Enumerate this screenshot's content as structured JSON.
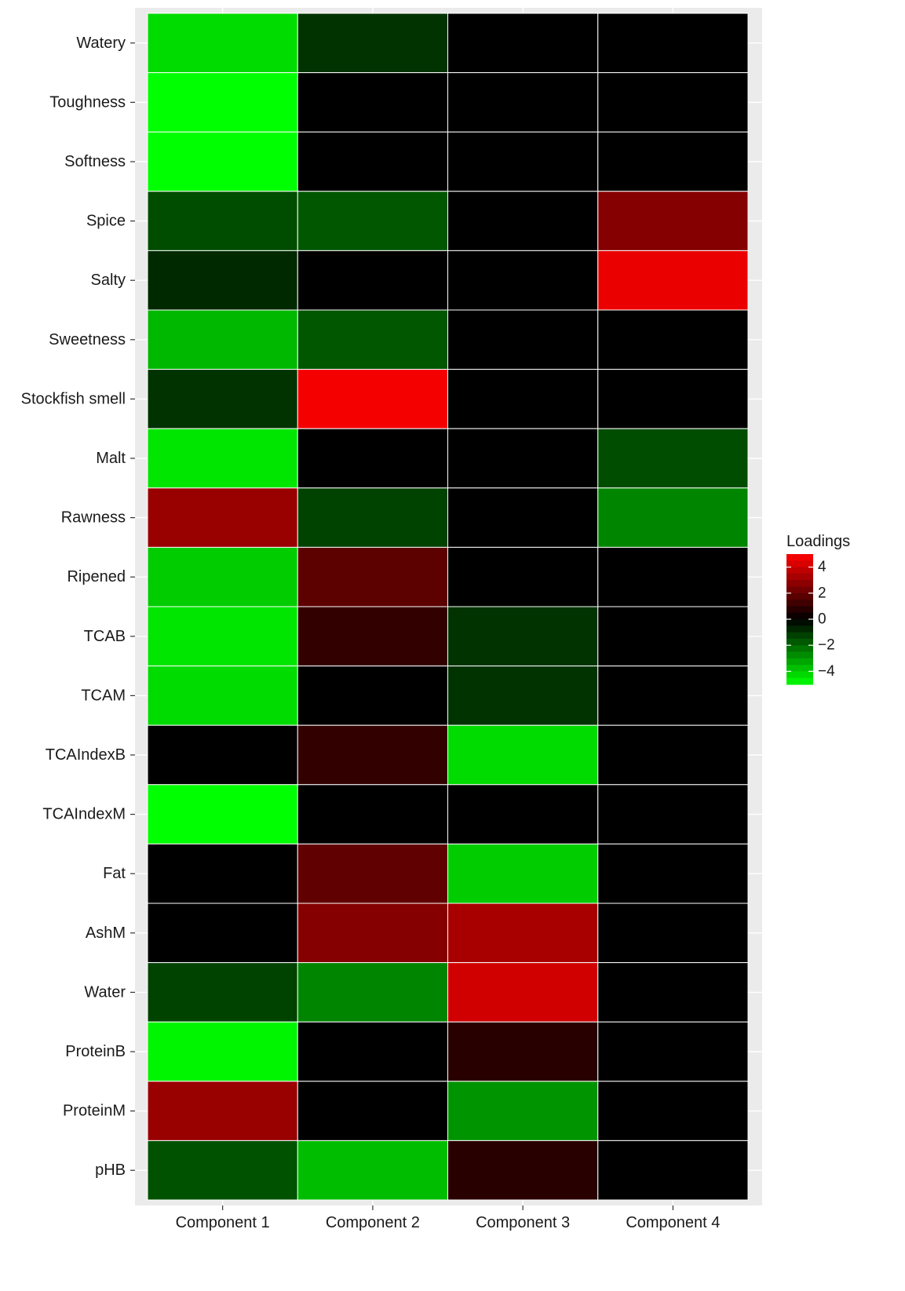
{
  "chart_data": {
    "type": "heatmap",
    "title": "",
    "xlabel": "",
    "ylabel": "",
    "x_categories": [
      "Component 1",
      "Component 2",
      "Component 3",
      "Component 4"
    ],
    "y_categories": [
      "Watery",
      "Toughness",
      "Softness",
      "Spice",
      "Salty",
      "Sweetness",
      "Stockfish smell",
      "Malt",
      "Rawness",
      "Ripened",
      "TCAB",
      "TCAM",
      "TCAIndexB",
      "TCAIndexM",
      "Fat",
      "AshM",
      "Water",
      "ProteinB",
      "ProteinM",
      "pHB"
    ],
    "values": [
      [
        -4.3,
        -1.0,
        0.0,
        0.0
      ],
      [
        -5.0,
        0.0,
        0.0,
        0.0
      ],
      [
        -5.0,
        0.0,
        0.0,
        0.0
      ],
      [
        -1.5,
        -1.7,
        0.0,
        2.6
      ],
      [
        -0.8,
        0.0,
        0.0,
        4.6
      ],
      [
        -3.6,
        -1.7,
        0.0,
        0.0
      ],
      [
        -1.0,
        4.8,
        0.0,
        0.0
      ],
      [
        -4.5,
        0.0,
        0.0,
        -1.5
      ],
      [
        3.0,
        -1.3,
        0.0,
        -2.6
      ],
      [
        -4.0,
        1.8,
        0.0,
        0.0
      ],
      [
        -4.5,
        1.0,
        -1.0,
        0.0
      ],
      [
        -4.3,
        0.0,
        -1.0,
        0.0
      ],
      [
        0.0,
        1.0,
        -4.3,
        0.0
      ],
      [
        -5.0,
        0.0,
        0.0,
        0.0
      ],
      [
        0.0,
        1.9,
        -4.0,
        0.0
      ],
      [
        0.0,
        2.6,
        3.3,
        0.0
      ],
      [
        -1.3,
        -2.6,
        4.1,
        0.0
      ],
      [
        -4.8,
        0.0,
        0.8,
        0.0
      ],
      [
        3.0,
        0.0,
        -2.9,
        0.0
      ],
      [
        -1.6,
        -3.7,
        0.8,
        0.0
      ]
    ],
    "scale": {
      "low": -5,
      "high": 5,
      "low_color": "#00ff00",
      "mid_color": "#000000",
      "high_color": "#ff0000"
    },
    "legend": {
      "title": "Loadings",
      "position": "right",
      "ticks": [
        4,
        2,
        0,
        -2,
        -4
      ],
      "tick_labels": [
        "4",
        "2",
        "0",
        "−2",
        "−4"
      ]
    },
    "grid": true,
    "panel_background": "#ebebeb",
    "cell_border_color": "#ffffff"
  }
}
